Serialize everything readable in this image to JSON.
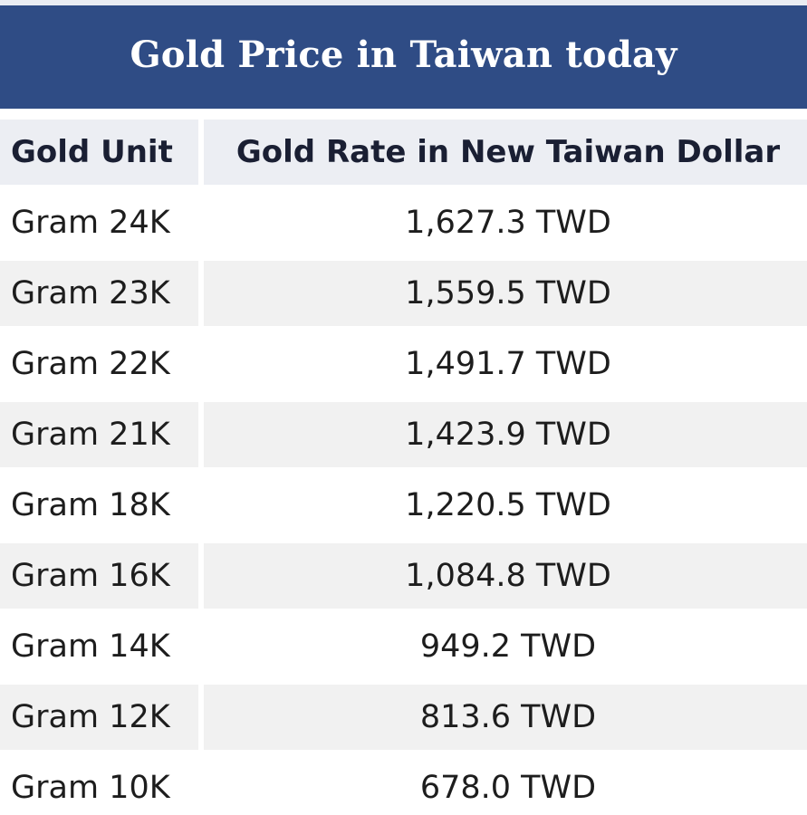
{
  "title": "Gold Price in Taiwan today",
  "table": {
    "headers": {
      "unit": "Gold Unit",
      "rate": "Gold Rate in New Taiwan Dollar"
    },
    "rows": [
      {
        "unit": "Gram 24K",
        "rate": "1,627.3 TWD"
      },
      {
        "unit": "Gram 23K",
        "rate": "1,559.5 TWD"
      },
      {
        "unit": "Gram 22K",
        "rate": "1,491.7 TWD"
      },
      {
        "unit": "Gram 21K",
        "rate": "1,423.9 TWD"
      },
      {
        "unit": "Gram 18K",
        "rate": "1,220.5 TWD"
      },
      {
        "unit": "Gram 16K",
        "rate": "1,084.8 TWD"
      },
      {
        "unit": "Gram 14K",
        "rate": "949.2 TWD"
      },
      {
        "unit": "Gram 12K",
        "rate": "813.6 TWD"
      },
      {
        "unit": "Gram 10K",
        "rate": "678.0 TWD"
      }
    ]
  },
  "colors": {
    "title_background": "#2f4c85",
    "title_text": "#ffffff",
    "header_background": "#eceef3",
    "row_alt_background": "#f1f1f1"
  }
}
